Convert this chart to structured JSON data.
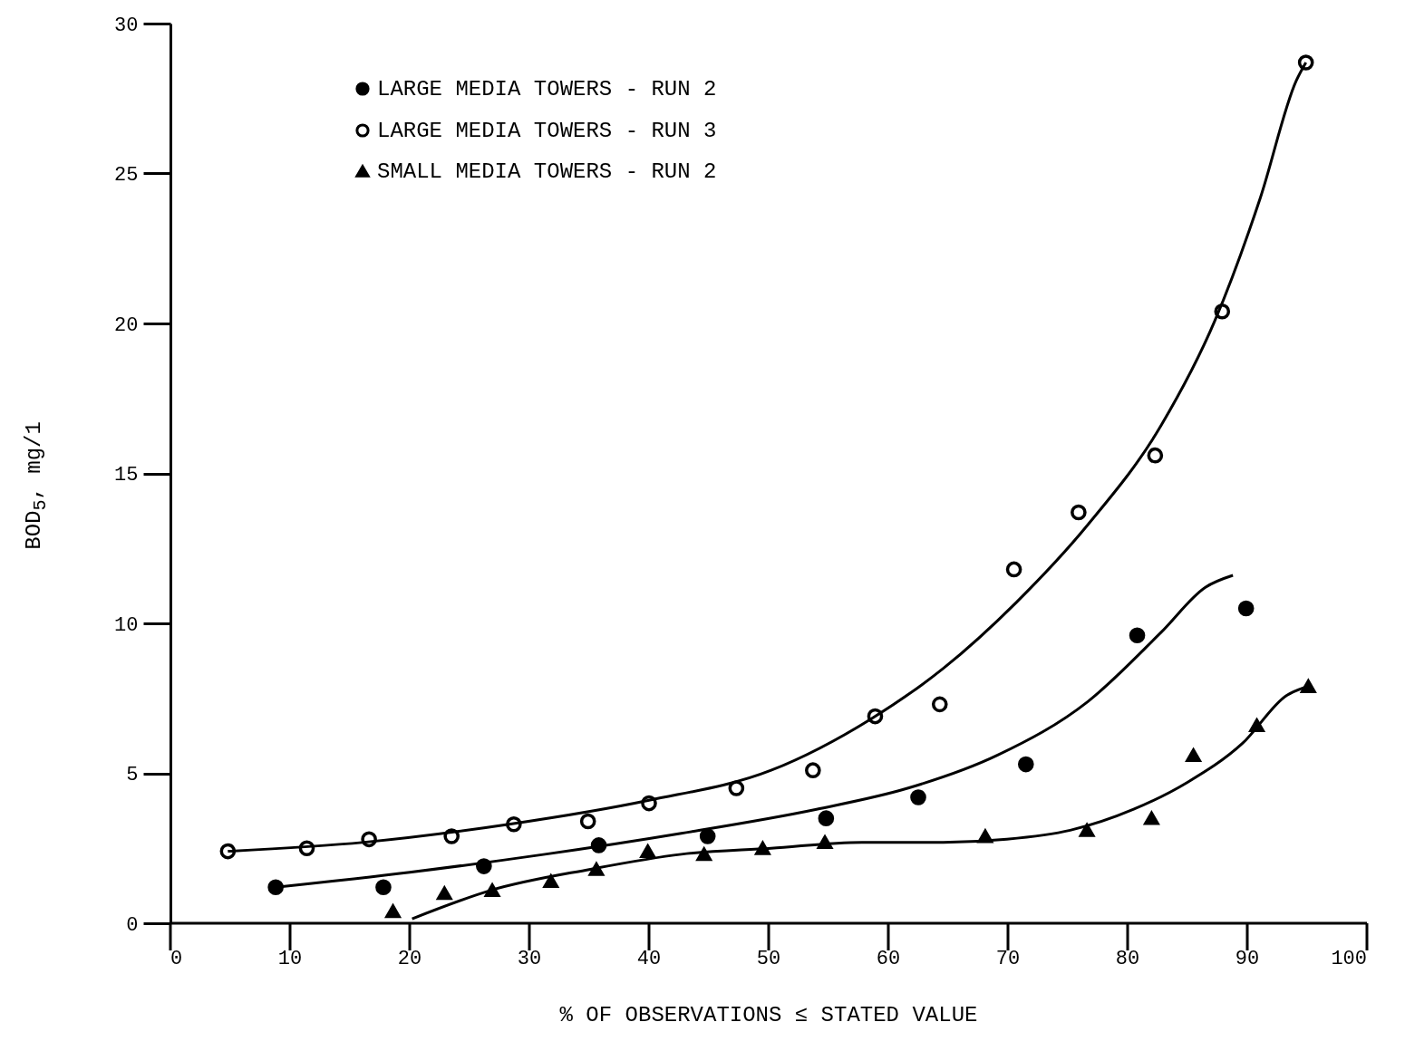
{
  "chart_data": {
    "type": "scatter",
    "xlabel": "% OF OBSERVATIONS ≤ STATED VALUE",
    "ylabel": "BOD$_{5}$, mg/1",
    "xlim": [
      0,
      100
    ],
    "xticks": [
      0,
      10,
      20,
      30,
      40,
      50,
      60,
      70,
      80,
      90,
      100
    ],
    "ylim": [
      0,
      30
    ],
    "yticks": [
      0,
      5,
      10,
      15,
      20,
      25,
      30
    ],
    "grid": false,
    "legend": "top left",
    "series": [
      {
        "name": "LARGE MEDIA TOWERS - RUN 2",
        "type": "scatter",
        "marker": "circle",
        "color": "#000000",
        "x": [
          8.8,
          17.8,
          26.2,
          35.8,
          44.9,
          54.8,
          62.5,
          71.5,
          80.8,
          89.9
        ],
        "values": [
          1.2,
          1.2,
          1.9,
          2.6,
          2.9,
          3.5,
          4.2,
          5.3,
          9.6,
          10.5
        ]
      },
      {
        "name": "LARGE MEDIA TOWERS - RUN 3",
        "type": "scatter",
        "marker": "circle",
        "color": "#000000",
        "x": [
          4.8,
          11.4,
          16.6,
          23.5,
          28.7,
          34.9,
          40.0,
          47.3,
          53.7,
          58.9,
          64.3,
          70.5,
          75.9,
          82.3,
          87.9,
          94.9
        ],
        "values": [
          2.4,
          2.5,
          2.8,
          2.9,
          3.3,
          3.4,
          4.0,
          4.5,
          5.1,
          6.9,
          7.3,
          11.8,
          13.7,
          15.6,
          20.4,
          28.7
        ]
      },
      {
        "name": "SMALL MEDIA TOWERS - RUN 2",
        "type": "scatter",
        "marker": "triangle",
        "color": "#000000",
        "x": [
          18.6,
          22.9,
          26.9,
          31.8,
          35.6,
          39.9,
          44.6,
          49.5,
          54.7,
          68.1,
          76.6,
          82.0,
          85.5,
          90.8,
          95.1
        ],
        "values": [
          0.4,
          1.0,
          1.1,
          1.4,
          1.8,
          2.4,
          2.3,
          2.5,
          2.7,
          2.9,
          3.1,
          3.5,
          5.6,
          6.6,
          7.9
        ]
      },
      {
        "type": "line",
        "line_style": "solid",
        "color": "#000000",
        "x": [
          8.8,
          20,
          31.3,
          42.7,
          54,
          61.6,
          69.1,
          76.7,
          82.8,
          86.5,
          88.8
        ],
        "values": [
          1.2,
          1.7,
          2.3,
          3.0,
          3.8,
          4.5,
          5.6,
          7.4,
          9.7,
          11.2,
          11.6
        ]
      },
      {
        "type": "line",
        "line_style": "solid",
        "color": "#000000",
        "x": [
          4.8,
          16.2,
          28.3,
          40,
          50.2,
          58.5,
          64.6,
          70.7,
          76.7,
          82.8,
          87.3,
          91.1,
          94.1,
          94.9
        ],
        "values": [
          2.4,
          2.7,
          3.3,
          4.1,
          5.1,
          6.8,
          8.5,
          10.7,
          13.3,
          16.6,
          20.1,
          24.2,
          28.1,
          28.7
        ]
      },
      {
        "type": "line",
        "line_style": "solid",
        "color": "#000000",
        "x": [
          20.2,
          26.8,
          35.1,
          42.7,
          50.2,
          57.8,
          64.6,
          69.9,
          75.2,
          80.5,
          85,
          89.6,
          93.3,
          95.1
        ],
        "values": [
          0.15,
          1.1,
          1.8,
          2.3,
          2.5,
          2.7,
          2.7,
          2.8,
          3.1,
          3.8,
          4.7,
          6.0,
          7.6,
          7.9
        ]
      }
    ]
  }
}
